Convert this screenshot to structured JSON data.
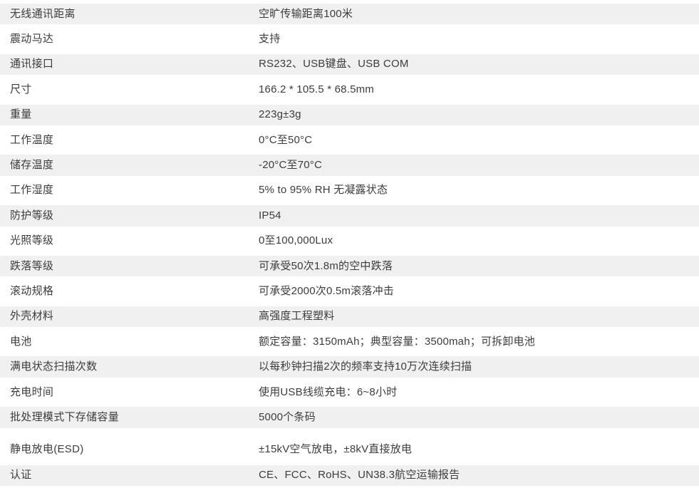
{
  "colors": {
    "stripe": "#f0f0f0",
    "text": "#3c3c3c",
    "background": "#ffffff"
  },
  "table": {
    "rows": [
      {
        "label": "无线通讯距离",
        "value": "空旷传输距离100米"
      },
      {
        "label": "震动马达",
        "value": "支持"
      },
      {
        "label": "通讯接口",
        "value": "RS232、USB键盘、USB COM"
      },
      {
        "label": "尺寸",
        "value": "166.2 * 105.5 * 68.5mm"
      },
      {
        "label": "重量",
        "value": "223g±3g"
      },
      {
        "label": "工作温度",
        "value": "0°C至50°C"
      },
      {
        "label": "储存温度",
        "value": "-20°C至70°C"
      },
      {
        "label": "工作湿度",
        "value": "5% to 95% RH 无凝露状态"
      },
      {
        "label": "防护等级",
        "value": "IP54"
      },
      {
        "label": "光照等级",
        "value": "0至100,000Lux"
      },
      {
        "label": "跌落等级",
        "value": "可承受50次1.8m的空中跌落"
      },
      {
        "label": "滚动规格",
        "value": "可承受2000次0.5m滚落冲击"
      },
      {
        "label": "外壳材料",
        "value": "高强度工程塑料"
      },
      {
        "label": "电池",
        "value": "额定容量：3150mAh；典型容量：3500mah；可拆卸电池"
      },
      {
        "label": "满电状态扫描次数",
        "value": "以每秒钟扫描2次的频率支持10万次连续扫描"
      },
      {
        "label": "充电时间",
        "value": "使用USB线缆充电：6~8小时"
      },
      {
        "label": "批处理模式下存储容量",
        "value": "5000个条码"
      },
      {
        "label": "静电放电(ESD)",
        "value": "±15kV空气放电，±8kV直接放电"
      },
      {
        "label": "认证",
        "value": "CE、FCC、RoHS、UN38.3航空运输报告"
      }
    ]
  }
}
